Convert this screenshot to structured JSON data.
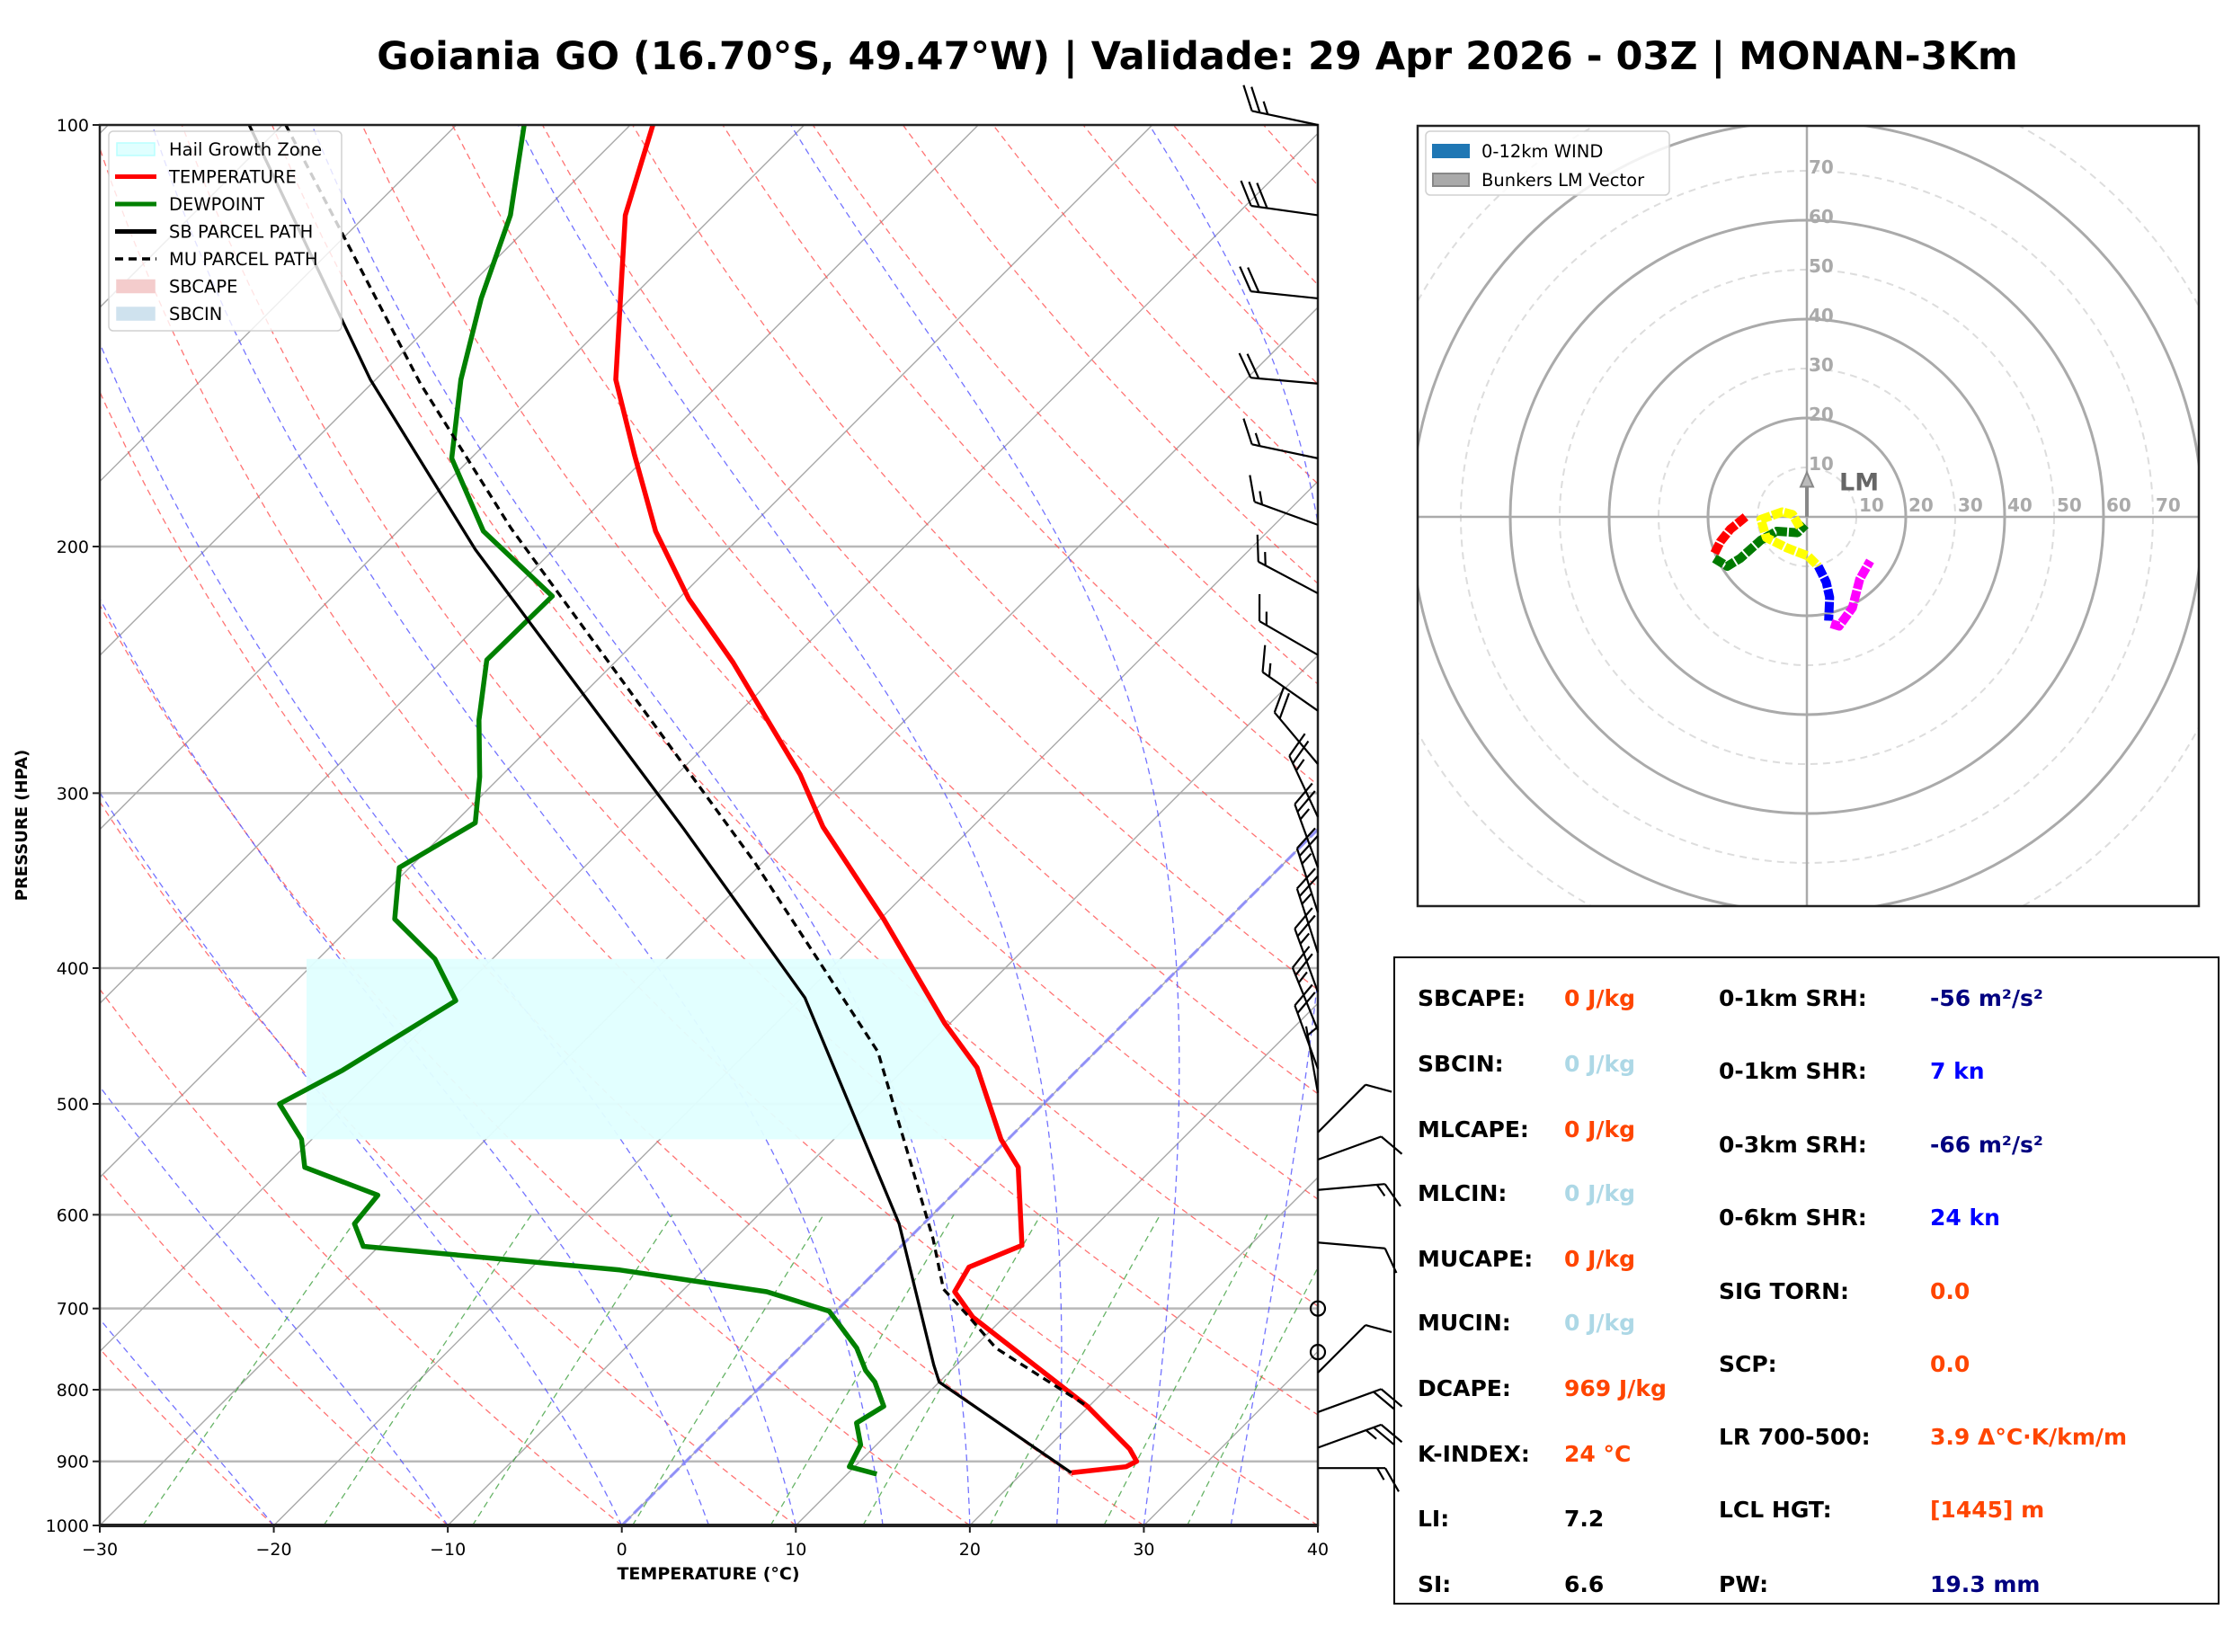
{
  "title": "Goiania GO (16.70°S, 49.47°W) | Validade: 29 Apr 2026 - 03Z | MONAN-3Km",
  "chart_data": [
    {
      "type": "skewt",
      "xlabel": "TEMPERATURE (°C)",
      "ylabel": "PRESSURE (HPA)",
      "xlim": [
        -30,
        40
      ],
      "ylim": [
        1000,
        100
      ],
      "y_scale": "log",
      "grid": true,
      "xticks": [
        -30,
        -20,
        -10,
        0,
        10,
        20,
        30,
        40
      ],
      "xtick_labels": [
        "−30",
        "−20",
        "−10",
        "0",
        "10",
        "20",
        "30",
        "40"
      ],
      "yticks": [
        100,
        200,
        300,
        400,
        500,
        600,
        700,
        800,
        900,
        1000
      ],
      "ytick_labels": [
        "100",
        "200",
        "300",
        "400",
        "500",
        "600",
        "700",
        "800",
        "900",
        "1000"
      ],
      "legend": {
        "placement": "top-left",
        "entries": [
          {
            "label": "Hail Growth Zone",
            "kind": "patch",
            "color": "#e0ffff",
            "edge": "#b8ffff"
          },
          {
            "label": "TEMPERATURE",
            "kind": "line",
            "color": "#ff0000"
          },
          {
            "label": "DEWPOINT",
            "kind": "line",
            "color": "#008000"
          },
          {
            "label": "SB PARCEL PATH",
            "kind": "line",
            "color": "#000000"
          },
          {
            "label": "MU PARCEL PATH",
            "kind": "dash",
            "color": "#000000"
          },
          {
            "label": "SBCAPE",
            "kind": "patch",
            "color": "#f4cccc",
            "edge": "#f4cccc"
          },
          {
            "label": "SBCIN",
            "kind": "patch",
            "color": "#cfe2ee",
            "edge": "#cfe2ee"
          }
        ]
      },
      "series": [
        {
          "name": "TEMPERATURE",
          "color": "#ff0000",
          "points": [
            [
              100,
              -78.7
            ],
            [
              116,
              -75.1
            ],
            [
              152,
              -66.2
            ],
            [
              172,
              -60.8
            ],
            [
              195,
              -55.2
            ],
            [
              218,
              -49.4
            ],
            [
              242,
              -43.2
            ],
            [
              291,
              -32.9
            ],
            [
              317,
              -28.6
            ],
            [
              369,
              -19.8
            ],
            [
              438,
              -10.3
            ],
            [
              471,
              -5.9
            ],
            [
              530,
              -0.4
            ],
            [
              555,
              2.2
            ],
            [
              631,
              6.9
            ],
            [
              654,
              5.1
            ],
            [
              681,
              5.7
            ],
            [
              710,
              8.2
            ],
            [
              822,
              19.9
            ],
            [
              882,
              24.8
            ],
            [
              900,
              25.9
            ],
            [
              908,
              25.6
            ],
            [
              917,
              22.8
            ]
          ]
        },
        {
          "name": "DEWPOINT",
          "color": "#008000",
          "points": [
            [
              100,
              -86.1
            ],
            [
              116,
              -81.7
            ],
            [
              133,
              -78.6
            ],
            [
              152,
              -75.1
            ],
            [
              173,
              -71.1
            ],
            [
              195,
              -65.1
            ],
            [
              217,
              -57.4
            ],
            [
              241,
              -57.5
            ],
            [
              266,
              -54.5
            ],
            [
              292,
              -51.2
            ],
            [
              315,
              -48.8
            ],
            [
              339,
              -50.6
            ],
            [
              369,
              -47.9
            ],
            [
              394,
              -43.3
            ],
            [
              422,
              -39.7
            ],
            [
              473,
              -42.2
            ],
            [
              500,
              -43.9
            ],
            [
              530,
              -40.6
            ],
            [
              555,
              -38.8
            ],
            [
              581,
              -33.0
            ],
            [
              609,
              -32.7
            ],
            [
              632,
              -30.9
            ],
            [
              657,
              -14.8
            ],
            [
              681,
              -5.1
            ],
            [
              703,
              -0.4
            ],
            [
              747,
              3.3
            ],
            [
              775,
              5.1
            ],
            [
              790,
              6.3
            ],
            [
              822,
              8.2
            ],
            [
              845,
              7.6
            ],
            [
              876,
              9.1
            ],
            [
              908,
              9.7
            ],
            [
              919,
              11.7
            ]
          ]
        },
        {
          "name": "SB PARCEL PATH",
          "color": "#000000",
          "points": [
            [
              100,
              -101.9
            ],
            [
              152,
              -80.3
            ],
            [
              201,
              -64.5
            ],
            [
              318,
              -36.5
            ],
            [
              420,
              -19.8
            ],
            [
              609,
              -1.4
            ],
            [
              768,
              8.7
            ],
            [
              790,
              10.0
            ],
            [
              917,
              22.8
            ]
          ]
        },
        {
          "name": "MU PARCEL PATH",
          "color": "#000000",
          "dashed": true,
          "points": [
            [
              100,
              -99.8
            ],
            [
              153,
              -77.2
            ],
            [
              194,
              -63.7
            ],
            [
              336,
              -30.5
            ],
            [
              459,
              -12.5
            ],
            [
              624,
              1.4
            ],
            [
              678,
              4.9
            ],
            [
              710,
              8.0
            ],
            [
              747,
              11.3
            ],
            [
              822,
              19.9
            ]
          ]
        }
      ],
      "hail_growth_zone": {
        "p_top": 394,
        "p_bottom": 530
      },
      "wind_barbs": [
        {
          "p": 100,
          "dir": 282,
          "speed": 25
        },
        {
          "p": 116,
          "dir": 278,
          "speed": 30
        },
        {
          "p": 133,
          "dir": 276,
          "speed": 20
        },
        {
          "p": 153,
          "dir": 275,
          "speed": 20
        },
        {
          "p": 173,
          "dir": 282,
          "speed": 15
        },
        {
          "p": 193,
          "dir": 290,
          "speed": 15
        },
        {
          "p": 216,
          "dir": 298,
          "speed": 15
        },
        {
          "p": 239,
          "dir": 300,
          "speed": 15
        },
        {
          "p": 262,
          "dir": 305,
          "speed": 15
        },
        {
          "p": 286,
          "dir": 320,
          "speed": 20
        },
        {
          "p": 312,
          "dir": 335,
          "speed": 25
        },
        {
          "p": 339,
          "dir": 340,
          "speed": 25
        },
        {
          "p": 365,
          "dir": 342,
          "speed": 25
        },
        {
          "p": 390,
          "dir": 342,
          "speed": 25
        },
        {
          "p": 416,
          "dir": 340,
          "speed": 25
        },
        {
          "p": 443,
          "dir": 338,
          "speed": 25
        },
        {
          "p": 472,
          "dir": 340,
          "speed": 20
        },
        {
          "p": 491,
          "dir": 350,
          "speed": 5
        },
        {
          "p": 524,
          "dir": 45,
          "speed": 10
        },
        {
          "p": 548,
          "dir": 70,
          "speed": 10
        },
        {
          "p": 576,
          "dir": 85,
          "speed": 15
        },
        {
          "p": 628,
          "dir": 95,
          "speed": 10
        },
        {
          "p": 700,
          "dir": 0,
          "speed": 0
        },
        {
          "p": 752,
          "dir": 0,
          "speed": 0
        },
        {
          "p": 778,
          "dir": 45,
          "speed": 10
        },
        {
          "p": 830,
          "dir": 70,
          "speed": 20
        },
        {
          "p": 880,
          "dir": 70,
          "speed": 25
        },
        {
          "p": 910,
          "dir": 90,
          "speed": 15
        }
      ]
    },
    {
      "type": "hodograph",
      "units": "kn",
      "ring_labels": [
        "10",
        "20",
        "30",
        "40",
        "50",
        "60",
        "70"
      ],
      "legend": {
        "placement": "top-left",
        "entries": [
          {
            "label": "0-12km WIND",
            "color": "#1f77b4"
          },
          {
            "label": "Bunkers LM Vector",
            "color": "#aaaaaa"
          }
        ]
      },
      "segments": [
        {
          "color": "#ff0000",
          "points": [
            [
              -12.4,
              0
            ],
            [
              -15.5,
              -2.5
            ],
            [
              -17.5,
              -5
            ],
            [
              -18.7,
              -7.4
            ]
          ]
        },
        {
          "color": "#007a00",
          "points": [
            [
              -18.7,
              -8.4
            ],
            [
              -16.1,
              -10
            ],
            [
              -13.5,
              -8.4
            ],
            [
              -9.3,
              -4.7
            ],
            [
              -6.1,
              -2.9
            ],
            [
              -1.9,
              -3.2
            ],
            [
              -0.3,
              -1.6
            ]
          ]
        },
        {
          "color": "#ffff00",
          "points": [
            [
              -1.4,
              -2.1
            ],
            [
              -2.9,
              0.5
            ],
            [
              -5,
              1
            ],
            [
              -9.3,
              -0.5
            ],
            [
              -8.2,
              -4.2
            ],
            [
              -4,
              -6.3
            ],
            [
              0.2,
              -7.9
            ],
            [
              2.3,
              -10
            ]
          ]
        },
        {
          "color": "#0000ff",
          "points": [
            [
              2.3,
              -10
            ],
            [
              3.9,
              -13.2
            ],
            [
              4.6,
              -16.3
            ],
            [
              4.4,
              -21
            ]
          ]
        },
        {
          "color": "#ff00ff",
          "points": [
            [
              4.9,
              -21.6
            ],
            [
              6.5,
              -22.1
            ],
            [
              9.2,
              -18.4
            ],
            [
              10.7,
              -12.6
            ],
            [
              12.8,
              -8.9
            ]
          ]
        }
      ],
      "bunkers_lm": {
        "u": 0,
        "v": 9,
        "label": "LM"
      }
    }
  ],
  "stats": {
    "left": [
      {
        "label": "SBCAPE:",
        "value": "0 J/kg",
        "color": "#ff4500"
      },
      {
        "label": "SBCIN:",
        "value": "0 J/kg",
        "color": "#add8e6"
      },
      {
        "label": "MLCAPE:",
        "value": "0 J/kg",
        "color": "#ff4500"
      },
      {
        "label": "MLCIN:",
        "value": "0 J/kg",
        "color": "#add8e6"
      },
      {
        "label": "MUCAPE:",
        "value": "0 J/kg",
        "color": "#ff4500"
      },
      {
        "label": "MUCIN:",
        "value": "0 J/kg",
        "color": "#add8e6"
      },
      {
        "label": "DCAPE:",
        "value": "969 J/kg",
        "color": "#ff4500"
      },
      {
        "label": "K-INDEX:",
        "value": "24 °C",
        "color": "#ff4500"
      },
      {
        "label": "LI:",
        "value": "7.2",
        "color": "#000000"
      },
      {
        "label": "SI:",
        "value": "6.6",
        "color": "#000000"
      }
    ],
    "right": [
      {
        "label": "0-1km SRH:",
        "value": "-56 m²/s²",
        "color": "#000080"
      },
      {
        "label": "0-1km SHR:",
        "value": "7 kn",
        "color": "#0000ff"
      },
      {
        "label": "0-3km SRH:",
        "value": "-66 m²/s²",
        "color": "#000080"
      },
      {
        "label": "0-6km SHR:",
        "value": "24 kn",
        "color": "#0000ff"
      },
      {
        "label": "SIG TORN:",
        "value": "0.0",
        "color": "#ff4500"
      },
      {
        "label": "SCP:",
        "value": "0.0",
        "color": "#ff4500"
      },
      {
        "label": "LR 700-500:",
        "value": "3.9 Δ°C·K/km/m",
        "color": "#ff4500"
      },
      {
        "label": "LCL HGT:",
        "value": "[1445] m",
        "color": "#ff4500"
      },
      {
        "label": "PW:",
        "value": "19.3 mm",
        "color": "#000080"
      }
    ]
  }
}
